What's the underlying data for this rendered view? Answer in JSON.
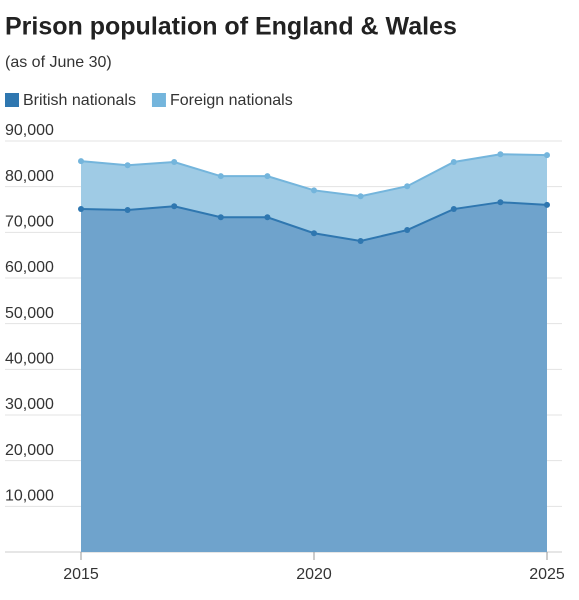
{
  "chart_data": {
    "type": "stacked-area",
    "title": "Prison population of England & Wales",
    "subtitle": "(as of June 30)",
    "x": [
      2015,
      2016,
      2017,
      2018,
      2019,
      2020,
      2021,
      2022,
      2023,
      2024,
      2025
    ],
    "series": [
      {
        "name": "British nationals",
        "color": "#2f77b0",
        "values": [
          75100,
          74900,
          75700,
          73300,
          73300,
          69800,
          68100,
          70500,
          75100,
          76600,
          76000
        ]
      },
      {
        "name": "Foreign nationals",
        "color": "#74b5dc",
        "values": [
          10500,
          9800,
          9700,
          9000,
          9000,
          9400,
          9800,
          9600,
          10300,
          10500,
          10900
        ]
      }
    ],
    "xlim": [
      2015,
      2025
    ],
    "xticks": [
      2015,
      2020,
      2025
    ],
    "ylim": [
      0,
      90000
    ],
    "yticks": [
      {
        "value": 10000,
        "label": "10,000"
      },
      {
        "value": 20000,
        "label": "20,000"
      },
      {
        "value": 30000,
        "label": "30,000"
      },
      {
        "value": 40000,
        "label": "40,000"
      },
      {
        "value": 50000,
        "label": "50,000"
      },
      {
        "value": 60000,
        "label": "60,000"
      },
      {
        "value": 70000,
        "label": "70,000"
      },
      {
        "value": 80000,
        "label": "80,000"
      },
      {
        "value": 90000,
        "label": "90,000"
      }
    ],
    "grid": true
  }
}
